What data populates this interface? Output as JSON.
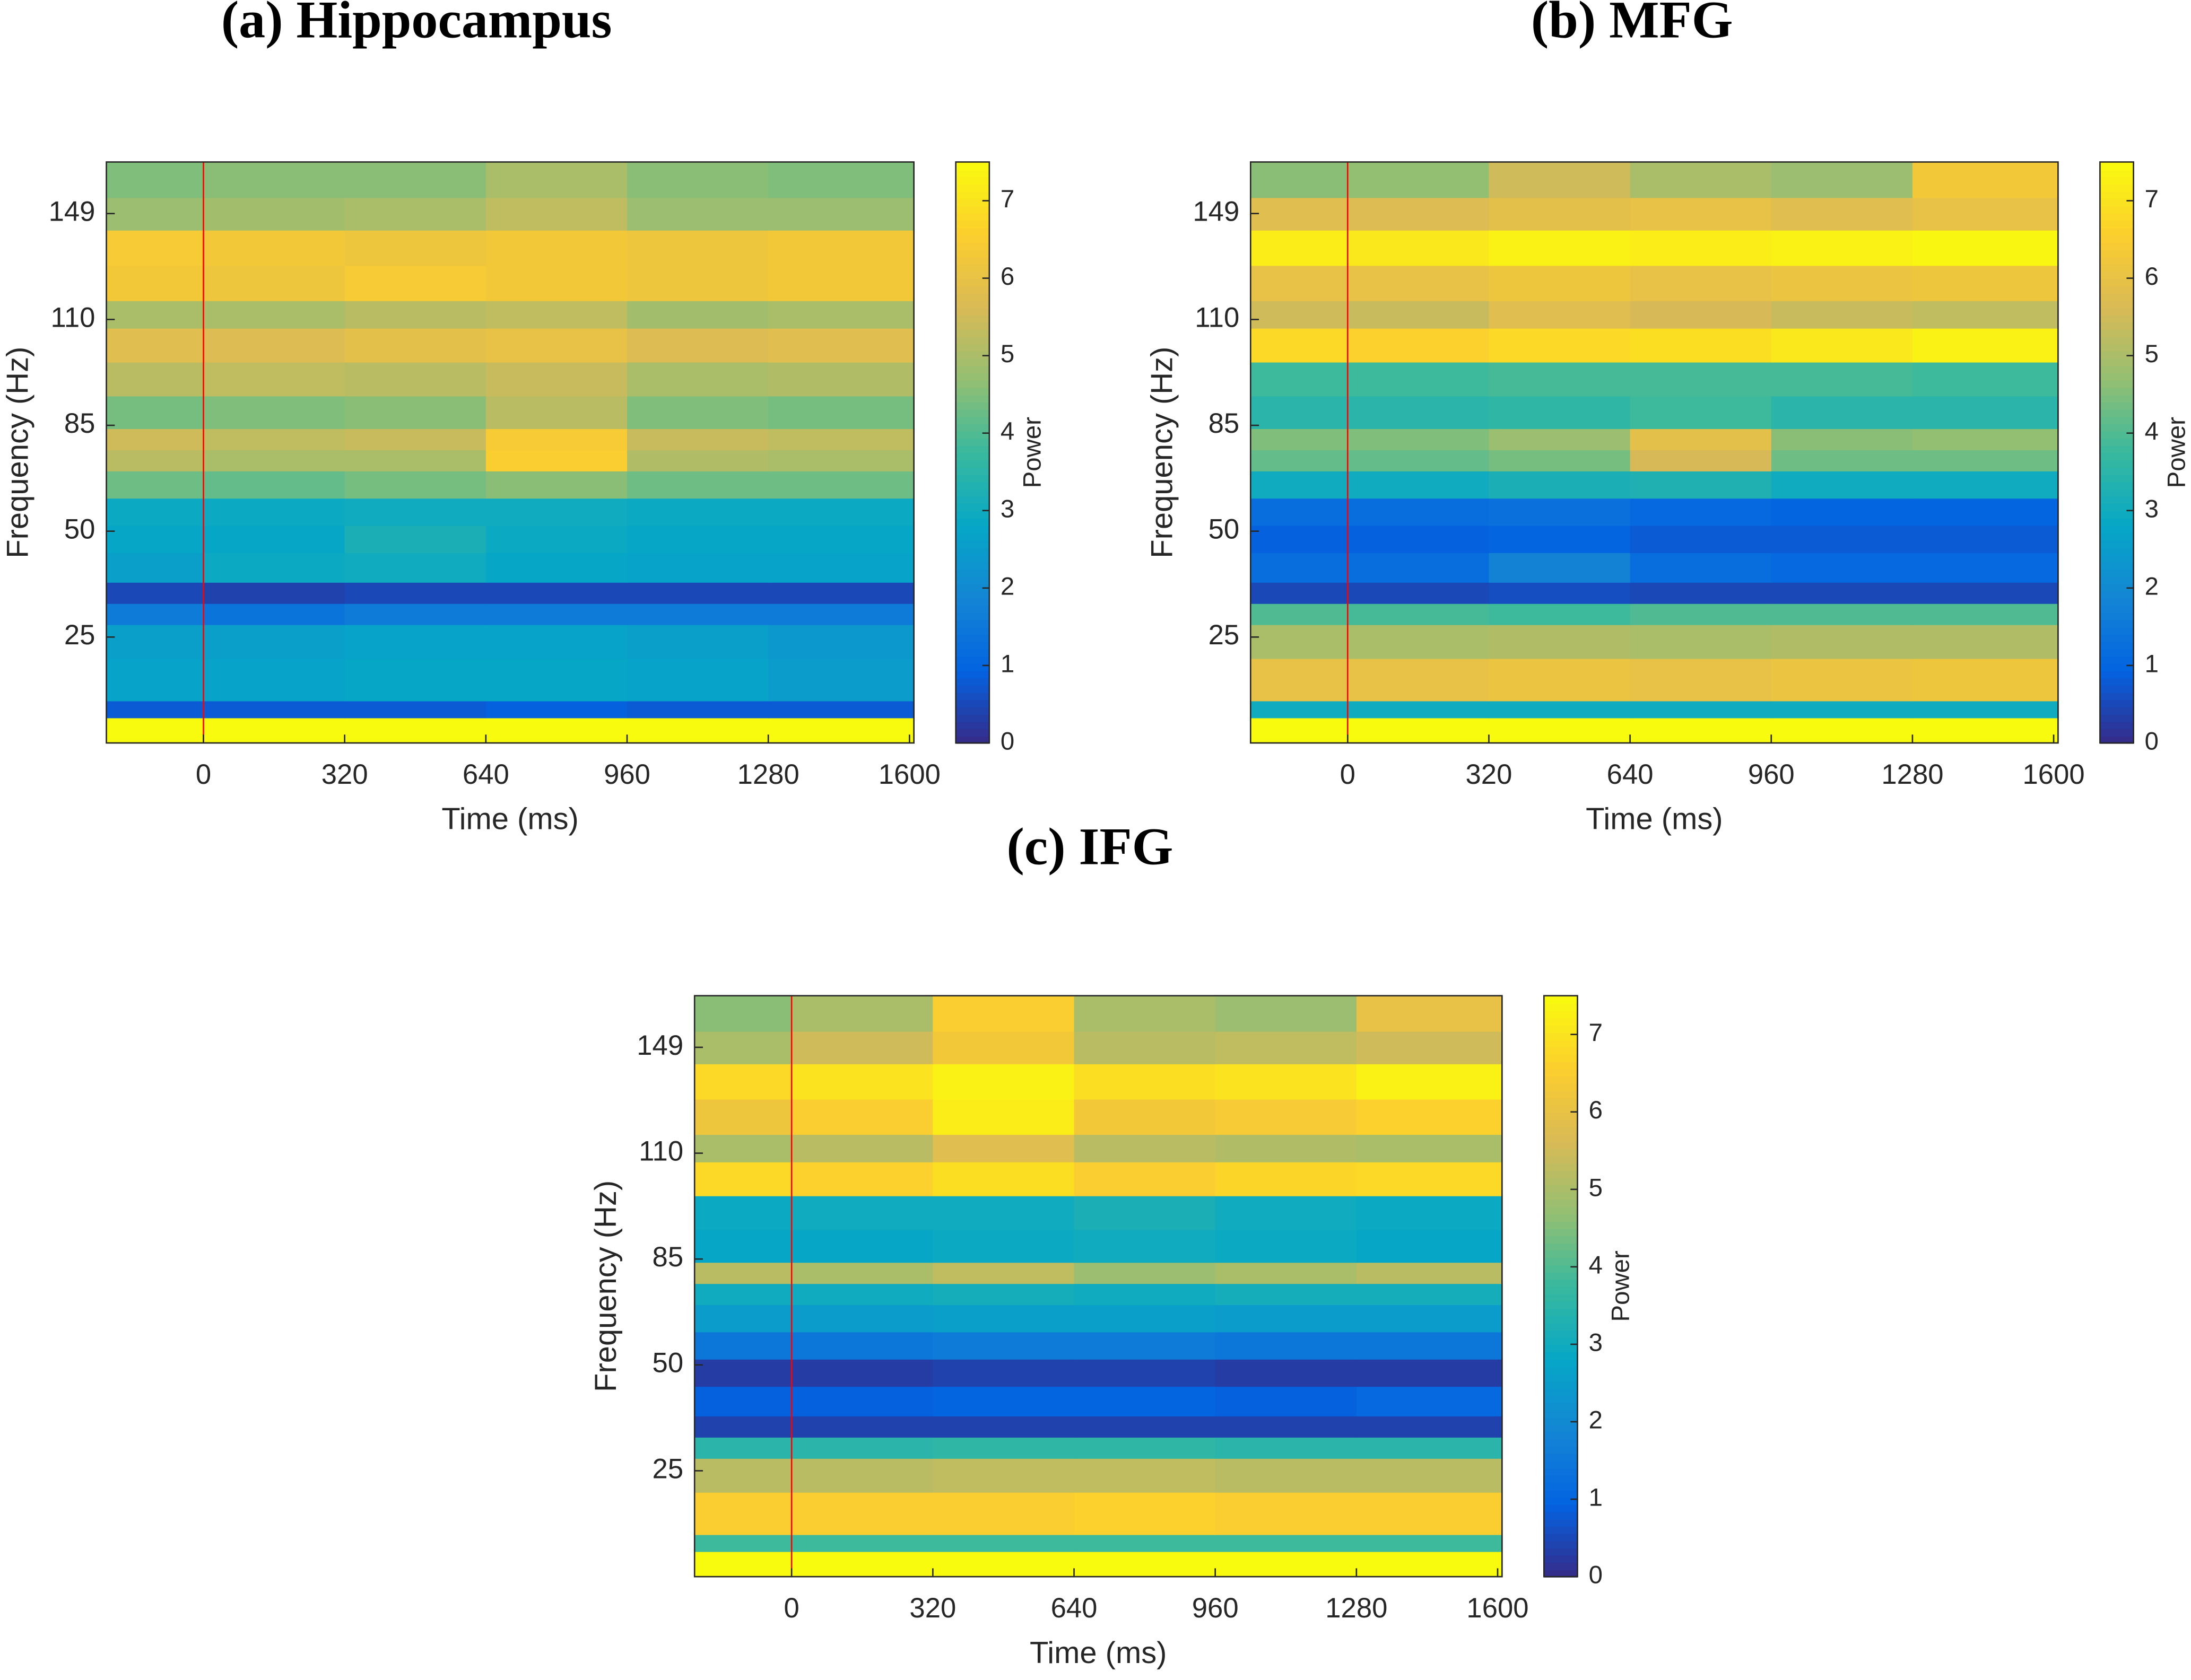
{
  "chart_data": [
    {
      "type": "heatmap",
      "title": "(a) Hippocampus",
      "xlabel": "Time (ms)",
      "ylabel": "Frequency (Hz)",
      "colorbar_label": "Power",
      "xlim": [
        -220,
        1610
      ],
      "xticks": [
        0,
        320,
        640,
        960,
        1280,
        1600
      ],
      "ylim": [
        0,
        168
      ],
      "yticks": [
        25,
        50,
        85,
        110,
        149
      ],
      "clim": [
        0,
        7.5
      ],
      "colorbar_ticks": [
        0,
        1,
        2,
        3,
        4,
        5,
        6,
        7
      ],
      "colormap": [
        "#352a87",
        "#0363e1",
        "#1485d4",
        "#06a7c6",
        "#38b99e",
        "#92bf73",
        "#d9ba56",
        "#fcce2e",
        "#f9fb0e"
      ],
      "vline_x": 0,
      "vline_color": "#ff0000",
      "x_edges": [
        -220,
        0,
        320,
        640,
        960,
        1280,
        1610
      ],
      "y_edges": [
        0,
        6,
        10,
        20,
        28,
        33,
        38,
        45,
        52,
        61,
        70,
        77,
        84,
        92,
        100,
        108,
        117,
        130,
        143,
        155,
        168
      ],
      "z": [
        [
          7.5,
          7.5,
          7.5,
          7.5,
          7.5,
          7.5
        ],
        [
          0.8,
          0.8,
          0.8,
          0.9,
          0.8,
          0.8
        ],
        [
          2.7,
          2.7,
          2.8,
          2.8,
          2.7,
          2.5
        ],
        [
          2.6,
          2.6,
          2.7,
          2.7,
          2.6,
          2.4
        ],
        [
          1.6,
          1.4,
          1.6,
          1.6,
          1.6,
          1.6
        ],
        [
          0.5,
          0.4,
          0.5,
          0.5,
          0.5,
          0.5
        ],
        [
          2.6,
          2.9,
          3.0,
          2.8,
          2.7,
          2.7
        ],
        [
          2.8,
          2.8,
          3.2,
          2.9,
          2.8,
          2.8
        ],
        [
          2.9,
          2.9,
          3.0,
          3.0,
          2.9,
          2.9
        ],
        [
          4.3,
          4.2,
          4.4,
          4.6,
          4.3,
          4.3
        ],
        [
          5.2,
          5.0,
          5.0,
          6.5,
          5.1,
          5.0
        ],
        [
          5.5,
          5.3,
          5.4,
          6.4,
          5.4,
          5.3
        ],
        [
          4.4,
          4.5,
          4.6,
          5.2,
          4.5,
          4.4
        ],
        [
          5.2,
          5.3,
          5.2,
          5.4,
          5.0,
          5.1
        ],
        [
          5.8,
          5.7,
          5.9,
          6.0,
          5.7,
          5.8
        ],
        [
          5.0,
          5.0,
          5.2,
          5.3,
          4.9,
          5.0
        ],
        [
          6.3,
          6.2,
          6.4,
          6.3,
          6.2,
          6.3
        ],
        [
          6.4,
          6.3,
          6.2,
          6.3,
          6.2,
          6.3
        ],
        [
          4.8,
          4.9,
          5.0,
          5.3,
          4.8,
          4.8
        ],
        [
          4.5,
          4.6,
          4.6,
          5.0,
          4.6,
          4.5
        ]
      ]
    },
    {
      "type": "heatmap",
      "title": "(b) MFG",
      "xlabel": "Time (ms)",
      "ylabel": "Frequency (Hz)",
      "colorbar_label": "Power",
      "xlim": [
        -220,
        1610
      ],
      "xticks": [
        0,
        320,
        640,
        960,
        1280,
        1600
      ],
      "ylim": [
        0,
        168
      ],
      "yticks": [
        25,
        50,
        85,
        110,
        149
      ],
      "clim": [
        0,
        7.5
      ],
      "colorbar_ticks": [
        0,
        1,
        2,
        3,
        4,
        5,
        6,
        7
      ],
      "colormap": [
        "#352a87",
        "#0363e1",
        "#1485d4",
        "#06a7c6",
        "#38b99e",
        "#92bf73",
        "#d9ba56",
        "#fcce2e",
        "#f9fb0e"
      ],
      "vline_x": 0,
      "vline_color": "#ff0000",
      "x_edges": [
        -220,
        0,
        320,
        640,
        960,
        1280,
        1610
      ],
      "y_edges": [
        0,
        6,
        10,
        20,
        28,
        33,
        38,
        45,
        52,
        61,
        70,
        77,
        84,
        92,
        100,
        108,
        117,
        130,
        143,
        155,
        168
      ],
      "z": [
        [
          7.5,
          7.5,
          7.5,
          7.5,
          7.5,
          7.5
        ],
        [
          3.0,
          3.0,
          3.0,
          3.0,
          3.0,
          3.0
        ],
        [
          6.0,
          6.0,
          6.1,
          6.0,
          6.1,
          6.2
        ],
        [
          5.0,
          5.0,
          5.1,
          5.0,
          5.1,
          5.1
        ],
        [
          4.0,
          3.9,
          3.8,
          4.0,
          4.0,
          4.0
        ],
        [
          0.5,
          0.5,
          0.6,
          0.5,
          0.5,
          0.5
        ],
        [
          1.2,
          1.2,
          1.8,
          1.2,
          1.1,
          1.1
        ],
        [
          0.9,
          0.9,
          1.0,
          0.8,
          0.8,
          0.8
        ],
        [
          1.2,
          1.2,
          1.3,
          1.1,
          1.0,
          1.0
        ],
        [
          3.0,
          3.0,
          3.2,
          3.3,
          3.0,
          3.0
        ],
        [
          4.2,
          4.2,
          4.4,
          5.6,
          4.3,
          4.3
        ],
        [
          4.5,
          4.5,
          4.8,
          5.9,
          4.6,
          4.7
        ],
        [
          3.5,
          3.5,
          3.6,
          3.8,
          3.5,
          3.5
        ],
        [
          3.8,
          3.8,
          3.9,
          3.9,
          3.9,
          3.8
        ],
        [
          6.8,
          6.6,
          6.8,
          6.9,
          7.1,
          7.3
        ],
        [
          5.5,
          5.4,
          5.8,
          5.6,
          5.4,
          5.3
        ],
        [
          6.0,
          6.0,
          6.2,
          6.0,
          6.1,
          6.2
        ],
        [
          7.2,
          7.1,
          7.3,
          7.2,
          7.3,
          7.4
        ],
        [
          5.8,
          5.7,
          5.9,
          6.0,
          5.8,
          6.0
        ],
        [
          4.6,
          4.7,
          5.5,
          5.0,
          4.8,
          6.3
        ]
      ]
    },
    {
      "type": "heatmap",
      "title": "(c) IFG",
      "xlabel": "Time (ms)",
      "ylabel": "Frequency (Hz)",
      "colorbar_label": "Power",
      "xlim": [
        -220,
        1610
      ],
      "xticks": [
        0,
        320,
        640,
        960,
        1280,
        1600
      ],
      "ylim": [
        0,
        168
      ],
      "yticks": [
        25,
        50,
        85,
        110,
        149
      ],
      "clim": [
        0,
        7.5
      ],
      "colorbar_ticks": [
        0,
        1,
        2,
        3,
        4,
        5,
        6,
        7
      ],
      "colormap": [
        "#352a87",
        "#0363e1",
        "#1485d4",
        "#06a7c6",
        "#38b99e",
        "#92bf73",
        "#d9ba56",
        "#fcce2e",
        "#f9fb0e"
      ],
      "vline_x": 0,
      "vline_color": "#ff0000",
      "x_edges": [
        -220,
        0,
        320,
        640,
        960,
        1280,
        1610
      ],
      "y_edges": [
        0,
        6,
        10,
        20,
        28,
        33,
        38,
        45,
        52,
        61,
        70,
        77,
        84,
        92,
        100,
        108,
        117,
        130,
        143,
        155,
        168
      ],
      "z": [
        [
          7.5,
          7.5,
          7.5,
          7.5,
          7.5,
          7.5
        ],
        [
          3.8,
          3.8,
          3.8,
          3.8,
          3.8,
          3.8
        ],
        [
          6.5,
          6.5,
          6.5,
          6.6,
          6.5,
          6.5
        ],
        [
          5.2,
          5.2,
          5.3,
          5.3,
          5.2,
          5.2
        ],
        [
          3.5,
          3.5,
          3.6,
          3.6,
          3.5,
          3.5
        ],
        [
          0.4,
          0.4,
          0.4,
          0.4,
          0.4,
          0.4
        ],
        [
          0.9,
          0.9,
          1.0,
          1.0,
          0.9,
          1.1
        ],
        [
          0.3,
          0.3,
          0.4,
          0.4,
          0.3,
          0.3
        ],
        [
          1.5,
          1.5,
          1.6,
          1.6,
          1.5,
          1.5
        ],
        [
          2.5,
          2.5,
          2.6,
          2.6,
          2.5,
          2.5
        ],
        [
          3.0,
          3.0,
          3.1,
          3.0,
          3.1,
          3.1
        ],
        [
          5.2,
          5.0,
          5.3,
          4.8,
          5.0,
          5.2
        ],
        [
          2.8,
          2.8,
          2.9,
          3.0,
          2.9,
          2.8
        ],
        [
          2.9,
          3.0,
          3.0,
          3.2,
          3.0,
          2.9
        ],
        [
          6.8,
          6.6,
          6.9,
          6.5,
          6.7,
          6.8
        ],
        [
          5.0,
          5.2,
          5.8,
          5.2,
          5.1,
          5.0
        ],
        [
          6.2,
          6.5,
          7.2,
          6.3,
          6.4,
          6.6
        ],
        [
          6.8,
          7.0,
          7.3,
          6.9,
          7.0,
          7.3
        ],
        [
          5.0,
          5.5,
          6.3,
          5.2,
          5.3,
          5.5
        ],
        [
          4.6,
          5.0,
          6.5,
          5.0,
          4.8,
          6.0
        ]
      ]
    }
  ]
}
